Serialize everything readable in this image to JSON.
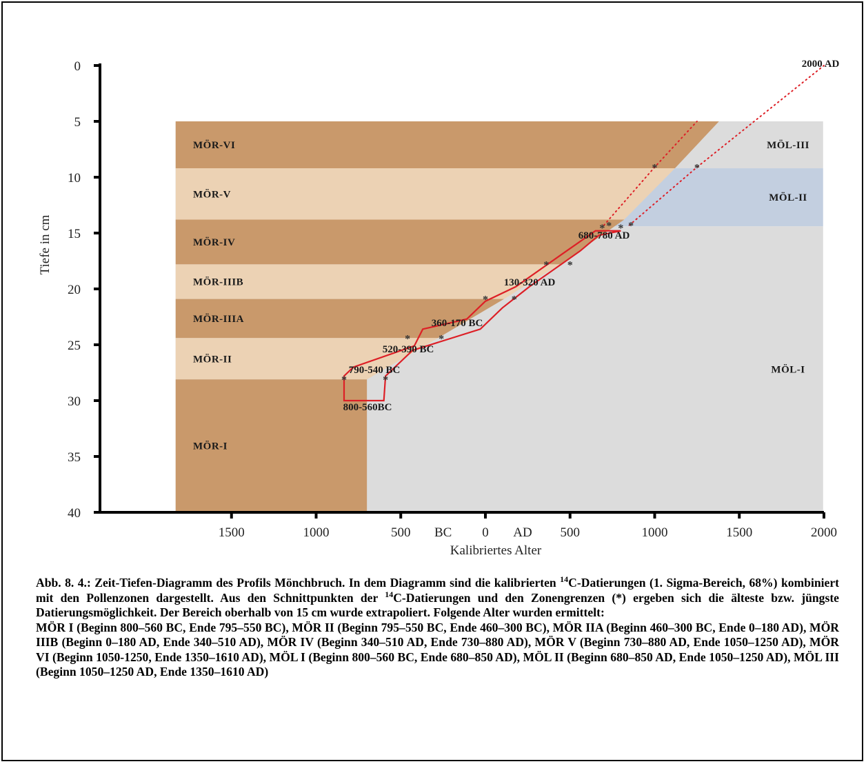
{
  "chart_data": {
    "type": "area",
    "xlabel": "Kalibriertes Alter",
    "ylabel": "Tiefe in cm",
    "xlim": [
      -2000,
      2000
    ],
    "ylim": [
      0,
      40
    ],
    "x_ticks": [
      {
        "value": -1500,
        "label": "1500"
      },
      {
        "value": -1000,
        "label": "1000"
      },
      {
        "value": -500,
        "label": "500"
      },
      {
        "value": 0,
        "label": "0"
      },
      {
        "value": 500,
        "label": "500"
      },
      {
        "value": 1000,
        "label": "1000"
      },
      {
        "value": 1500,
        "label": "1500"
      },
      {
        "value": 2000,
        "label": "2000"
      }
    ],
    "x_era_labels": [
      {
        "value": -250,
        "label": "BC"
      },
      {
        "value": 220,
        "label": "AD"
      }
    ],
    "y_ticks": [
      0,
      5,
      10,
      15,
      20,
      25,
      30,
      35,
      40
    ],
    "mor_zones": [
      {
        "name": "MÖR-VI",
        "top": 5,
        "bottom": 9.2,
        "color": "#c9996b"
      },
      {
        "name": "MÖR-V",
        "top": 9.2,
        "bottom": 13.8,
        "color": "#ecd2b4"
      },
      {
        "name": "MÖR-IV",
        "top": 13.8,
        "bottom": 17.8,
        "color": "#c9996b"
      },
      {
        "name": "MÖR-IIIB",
        "top": 17.8,
        "bottom": 20.9,
        "color": "#ecd2b4"
      },
      {
        "name": "MÖR-IIIA",
        "top": 20.9,
        "bottom": 24.4,
        "color": "#c9996b"
      },
      {
        "name": "MÖR-II",
        "top": 24.4,
        "bottom": 28.1,
        "color": "#ecd2b4"
      },
      {
        "name": "MÖR-I",
        "top": 28.1,
        "bottom": 40,
        "color": "#c9996b"
      }
    ],
    "mol_zones": [
      {
        "name": "MÖL-III",
        "top": 5,
        "bottom": 9.2,
        "color": "#dcdcdc"
      },
      {
        "name": "MÖL-II",
        "top": 9.2,
        "bottom": 14.4,
        "color": "#c3cfe0"
      },
      {
        "name": "MÖL-I",
        "top": 14.4,
        "bottom": 40,
        "color": "#dcdcdc"
      }
    ],
    "age_depth_envelope": {
      "color": "#dd1f26",
      "old_bound": [
        [
          -835,
          30
        ],
        [
          -835,
          27.8
        ],
        [
          -780,
          27
        ],
        [
          -420,
          25.1
        ],
        [
          -370,
          23.6
        ],
        [
          -110,
          22.7
        ],
        [
          0,
          21.1
        ],
        [
          180,
          19.8
        ],
        [
          470,
          16.7
        ],
        [
          650,
          14.8
        ],
        [
          800,
          14.8
        ]
      ],
      "young_bound": [
        [
          -600,
          30
        ],
        [
          -590,
          27.8
        ],
        [
          -430,
          25.5
        ],
        [
          -30,
          23.6
        ],
        [
          100,
          21.7
        ],
        [
          260,
          19.8
        ],
        [
          560,
          16.6
        ],
        [
          670,
          15.2
        ],
        [
          800,
          14.8
        ]
      ]
    },
    "dated_samples": [
      {
        "label": "680-780 AD",
        "age_min": 680,
        "age_max": 780,
        "depth": 15
      },
      {
        "label": "130-320 AD",
        "age_min": 130,
        "age_max": 320,
        "depth": 20
      },
      {
        "label": "360-170 BC",
        "age_min": -360,
        "age_max": -170,
        "depth": 23.5
      },
      {
        "label": "520-390 BC",
        "age_min": -520,
        "age_max": -390,
        "depth": 25.5
      },
      {
        "label": "790-540 BC",
        "age_min": -790,
        "age_max": -540,
        "depth": 27.5
      },
      {
        "label": "800-560BC",
        "age_min": -800,
        "age_max": -560,
        "depth": 30
      }
    ],
    "extrapolation_lines": [
      {
        "label": "2000 AD",
        "points": [
          [
            700,
            14.3
          ],
          [
            1000,
            9.1
          ],
          [
            1250,
            5
          ]
        ]
      },
      {
        "label": "",
        "points": [
          [
            850,
            14.3
          ],
          [
            1250,
            9.1
          ],
          [
            2000,
            0
          ]
        ]
      }
    ],
    "zone_intersections": [
      [
        -835,
        28.1
      ],
      [
        -590,
        28.1
      ],
      [
        -460,
        24.4
      ],
      [
        -260,
        24.4
      ],
      [
        0,
        20.9
      ],
      [
        170,
        20.9
      ],
      [
        360,
        17.8
      ],
      [
        500,
        17.8
      ],
      [
        690,
        14.5
      ],
      [
        730,
        14.3
      ],
      [
        800,
        14.5
      ],
      [
        860,
        14.3
      ],
      [
        1000,
        9.1
      ],
      [
        1250,
        9.1
      ]
    ]
  },
  "caption": {
    "lines": [
      {
        "segments": [
          {
            "t": "Abb. 8. 4.: Zeit-Tiefen-Diagramm des Profils Mönchbruch. In dem Diagramm sind die kalibrierten "
          },
          {
            "t": "14",
            "sup": true
          },
          {
            "t": "C-Datierungen (1. Sigma-Bereich, 68%) kombiniert mit den Pollenzonen dargestellt. Aus den Schnittpunkten der "
          },
          {
            "t": "14",
            "sup": true
          },
          {
            "t": "C-Datierungen und den Zonengrenzen (*) ergeben sich die älteste bzw. jüngste Datierungsmöglichkeit. Der Bereich oberhalb von 15 cm wurde extrapoliert. Folgende Alter wurden ermittelt:"
          }
        ]
      },
      {
        "segments": [
          {
            "t": "MÖR I (Beginn 800–560 BC, Ende 795–550 BC), MÖR II (Beginn 795–550 BC, Ende 460–300 BC), MÖR IIA (Beginn 460–300 BC, Ende 0–180 AD), MÖR IIIB (Beginn 0–180 AD, Ende 340–510 AD), MÖR IV (Beginn 340–510 AD, Ende 730–880 AD), MÖR V (Beginn 730–880 AD, Ende 1050–1250 AD), MÖR VI (Beginn 1050-1250, Ende 1350–1610 AD), MÖL I (Beginn 800–560 BC, Ende 680–850 AD), MÖL II (Beginn 680–850 AD, Ende 1050–1250 AD), MÖL III (Beginn 1050–1250 AD, Ende 1350–1610 AD)"
          }
        ]
      }
    ]
  }
}
